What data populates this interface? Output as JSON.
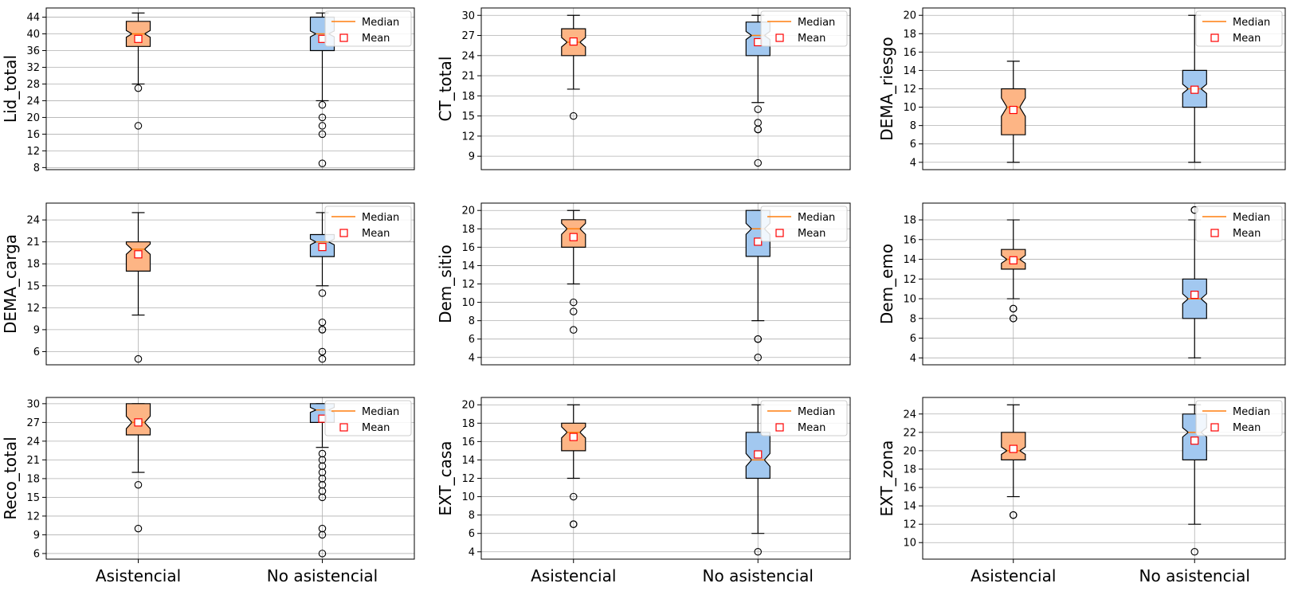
{
  "legend": {
    "median_label": "Median",
    "mean_label": "Mean"
  },
  "x_categories": [
    "Asistencial",
    "No asistencial"
  ],
  "colors": {
    "asistencial_box": "#FDB585",
    "no_asistencial_box": "#A2C8F0",
    "median_line": "#FF7F0E",
    "mean_marker_edge": "#FF0000",
    "grid": "#B0B0B0",
    "axis": "#000000"
  },
  "chart_data": [
    {
      "type": "box",
      "ylabel": "Lid_total",
      "yticks": [
        8,
        12,
        16,
        20,
        24,
        28,
        32,
        36,
        40,
        44
      ],
      "ylim": [
        7.5,
        46.2
      ],
      "grid": true,
      "legend_position": "upper right",
      "categories": [
        "Asistencial",
        "No asistencial"
      ],
      "series": [
        {
          "q1": 37,
          "median": 40,
          "q3": 43,
          "whisker_low": 28,
          "whisker_high": 45,
          "mean": 38.8,
          "notch_low": 39.2,
          "notch_high": 40.8,
          "outliers": [
            27,
            18
          ]
        },
        {
          "q1": 36,
          "median": 40,
          "q3": 44,
          "whisker_low": 24,
          "whisker_high": 45,
          "mean": 38.8,
          "notch_low": 39.3,
          "notch_high": 40.7,
          "outliers": [
            23,
            20,
            18,
            16,
            9
          ]
        }
      ]
    },
    {
      "type": "box",
      "ylabel": "CT_total",
      "yticks": [
        9,
        12,
        15,
        18,
        21,
        24,
        27,
        30
      ],
      "ylim": [
        7.0,
        31.1
      ],
      "grid": true,
      "legend_position": "upper right",
      "categories": [
        "Asistencial",
        "No asistencial"
      ],
      "series": [
        {
          "q1": 24,
          "median": 26,
          "q3": 28,
          "whisker_low": 19,
          "whisker_high": 30,
          "mean": 26.1,
          "notch_low": 25.3,
          "notch_high": 26.7,
          "outliers": [
            15
          ]
        },
        {
          "q1": 24,
          "median": 27,
          "q3": 29,
          "whisker_low": 17,
          "whisker_high": 30,
          "mean": 26.0,
          "notch_low": 26.4,
          "notch_high": 27.6,
          "outliers": [
            16,
            14,
            13,
            13,
            8
          ]
        }
      ]
    },
    {
      "type": "box",
      "ylabel": "DEMA_riesgo",
      "yticks": [
        4,
        6,
        8,
        10,
        12,
        14,
        16,
        18,
        20
      ],
      "ylim": [
        3.2,
        20.8
      ],
      "grid": true,
      "legend_position": "upper right",
      "categories": [
        "Asistencial",
        "No asistencial"
      ],
      "series": [
        {
          "q1": 7,
          "median": 10,
          "q3": 12,
          "whisker_low": 4,
          "whisker_high": 15,
          "mean": 9.7,
          "notch_low": 9.0,
          "notch_high": 11.0,
          "outliers": []
        },
        {
          "q1": 10,
          "median": 12,
          "q3": 14,
          "whisker_low": 4,
          "whisker_high": 20,
          "mean": 11.9,
          "notch_low": 11.5,
          "notch_high": 12.5,
          "outliers": []
        }
      ]
    },
    {
      "type": "box",
      "ylabel": "DEMA_carga",
      "yticks": [
        6,
        9,
        12,
        15,
        18,
        21,
        24
      ],
      "ylim": [
        4.2,
        26.3
      ],
      "grid": true,
      "legend_position": "upper right",
      "categories": [
        "Asistencial",
        "No asistencial"
      ],
      "series": [
        {
          "q1": 17,
          "median": 20,
          "q3": 21,
          "whisker_low": 11,
          "whisker_high": 25,
          "mean": 19.3,
          "notch_low": 19.3,
          "notch_high": 20.7,
          "outliers": [
            5
          ]
        },
        {
          "q1": 19,
          "median": 21,
          "q3": 22,
          "whisker_low": 15,
          "whisker_high": 25,
          "mean": 20.3,
          "notch_low": 20.6,
          "notch_high": 21.4,
          "outliers": [
            14,
            10,
            9,
            9,
            6,
            5
          ]
        }
      ]
    },
    {
      "type": "box",
      "ylabel": "Dem_sitio",
      "yticks": [
        4,
        6,
        8,
        10,
        12,
        14,
        16,
        18,
        20
      ],
      "ylim": [
        3.2,
        20.8
      ],
      "grid": true,
      "legend_position": "upper right",
      "categories": [
        "Asistencial",
        "No asistencial"
      ],
      "series": [
        {
          "q1": 16,
          "median": 18,
          "q3": 19,
          "whisker_low": 12,
          "whisker_high": 20,
          "mean": 17.1,
          "notch_low": 17.4,
          "notch_high": 18.6,
          "outliers": [
            10,
            9,
            7
          ]
        },
        {
          "q1": 15,
          "median": 18,
          "q3": 20,
          "whisker_low": 8,
          "whisker_high": 20,
          "mean": 16.6,
          "notch_low": 17.4,
          "notch_high": 18.6,
          "outliers": [
            6,
            6,
            4
          ]
        }
      ]
    },
    {
      "type": "box",
      "ylabel": "Dem_emo",
      "yticks": [
        4,
        6,
        8,
        10,
        12,
        14,
        16,
        18
      ],
      "ylim": [
        3.3,
        19.7
      ],
      "grid": true,
      "legend_position": "upper right",
      "categories": [
        "Asistencial",
        "No asistencial"
      ],
      "series": [
        {
          "q1": 13,
          "median": 14,
          "q3": 15,
          "whisker_low": 10,
          "whisker_high": 18,
          "mean": 13.9,
          "notch_low": 13.6,
          "notch_high": 14.4,
          "outliers": [
            9,
            9,
            8,
            8
          ]
        },
        {
          "q1": 8,
          "median": 10,
          "q3": 12,
          "whisker_low": 4,
          "whisker_high": 18,
          "mean": 10.4,
          "notch_low": 9.5,
          "notch_high": 10.5,
          "outliers": [
            19,
            19
          ]
        }
      ]
    },
    {
      "type": "box",
      "ylabel": "Reco_total",
      "yticks": [
        6,
        9,
        12,
        15,
        18,
        21,
        24,
        27,
        30
      ],
      "ylim": [
        5.1,
        31.0
      ],
      "grid": true,
      "legend_position": "upper right",
      "categories": [
        "Asistencial",
        "No asistencial"
      ],
      "series": [
        {
          "q1": 25,
          "median": 27,
          "q3": 30,
          "whisker_low": 19,
          "whisker_high": 30,
          "mean": 27.0,
          "notch_low": 26.0,
          "notch_high": 28.0,
          "outliers": [
            17,
            10
          ]
        },
        {
          "q1": 27,
          "median": 29,
          "q3": 30,
          "whisker_low": 23,
          "whisker_high": 30,
          "mean": 27.6,
          "notch_low": 28.6,
          "notch_high": 29.4,
          "outliers": [
            22,
            21,
            20,
            19,
            18,
            17,
            16,
            15,
            10,
            9,
            6
          ]
        }
      ]
    },
    {
      "type": "box",
      "ylabel": "EXT_casa",
      "yticks": [
        4,
        6,
        8,
        10,
        12,
        14,
        16,
        18,
        20
      ],
      "ylim": [
        3.2,
        20.8
      ],
      "grid": true,
      "legend_position": "upper right",
      "categories": [
        "Asistencial",
        "No asistencial"
      ],
      "series": [
        {
          "q1": 15,
          "median": 17,
          "q3": 18,
          "whisker_low": 12,
          "whisker_high": 20,
          "mean": 16.5,
          "notch_low": 16.4,
          "notch_high": 17.6,
          "outliers": [
            10,
            7,
            7
          ]
        },
        {
          "q1": 12,
          "median": 14,
          "q3": 17,
          "whisker_low": 6,
          "whisker_high": 20,
          "mean": 14.6,
          "notch_low": 13.3,
          "notch_high": 14.7,
          "outliers": [
            4
          ]
        }
      ]
    },
    {
      "type": "box",
      "ylabel": "EXT_zona",
      "yticks": [
        10,
        12,
        14,
        16,
        18,
        20,
        22,
        24
      ],
      "ylim": [
        8.2,
        25.8
      ],
      "grid": true,
      "legend_position": "upper right",
      "categories": [
        "Asistencial",
        "No asistencial"
      ],
      "series": [
        {
          "q1": 19,
          "median": 20,
          "q3": 22,
          "whisker_low": 15,
          "whisker_high": 25,
          "mean": 20.2,
          "notch_low": 19.6,
          "notch_high": 20.4,
          "outliers": [
            13,
            13
          ]
        },
        {
          "q1": 19,
          "median": 22,
          "q3": 24,
          "whisker_low": 12,
          "whisker_high": 25,
          "mean": 21.1,
          "notch_low": 21.5,
          "notch_high": 22.5,
          "outliers": [
            9
          ]
        }
      ]
    }
  ]
}
